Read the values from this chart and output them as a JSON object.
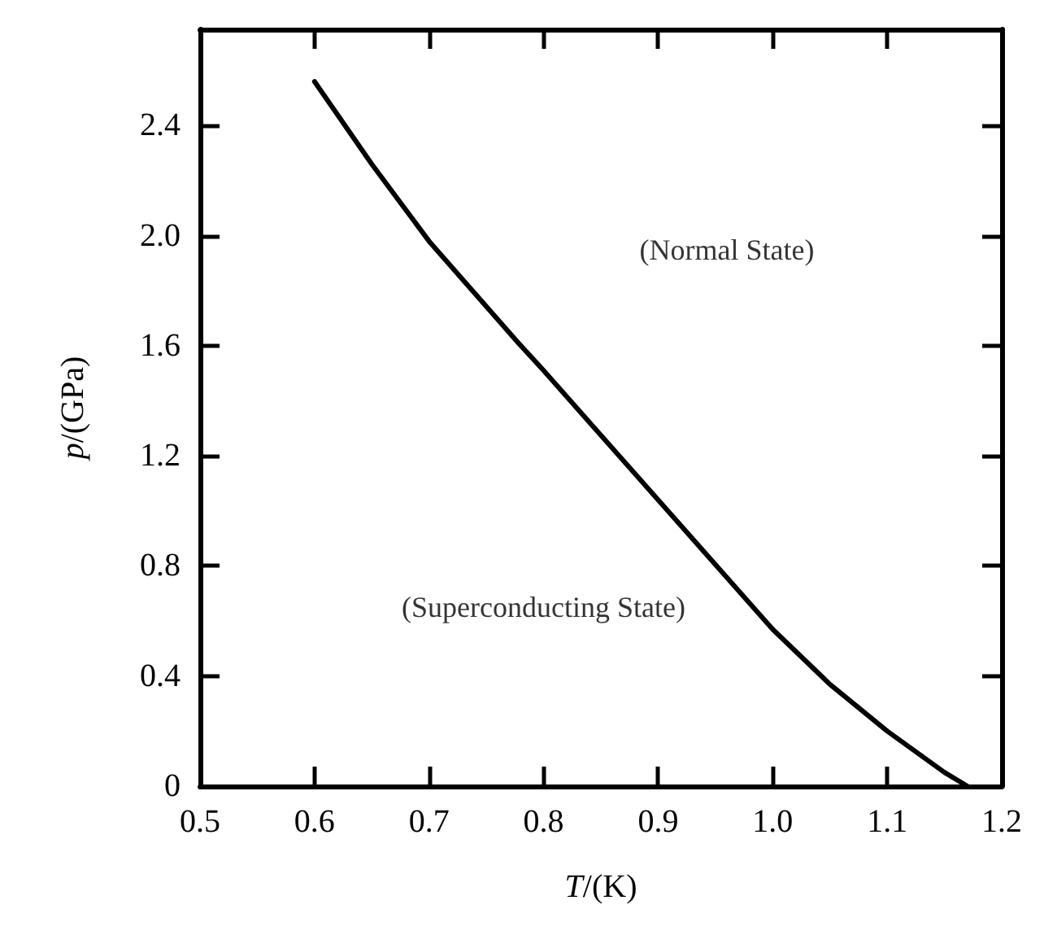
{
  "chart_data": {
    "type": "line",
    "xlabel": "T/(K)",
    "ylabel": "p/(GPa)",
    "x": [
      0.6,
      0.65,
      0.7,
      0.778,
      0.8,
      0.9,
      1.0,
      1.05,
      1.1,
      1.15,
      1.17
    ],
    "series": [
      {
        "color": "#000000",
        "values": [
          2.56,
          2.26,
          1.98,
          1.61,
          1.51,
          1.04,
          0.57,
          0.37,
          0.2,
          0.05,
          0
        ]
      }
    ],
    "xlim": [
      0.5,
      1.2
    ],
    "ylim": [
      0,
      2.75
    ],
    "xticks": [
      0.5,
      0.6,
      0.7,
      0.8,
      0.9,
      {
        "value": 1,
        "label": "1.0"
      },
      1.1,
      1.2
    ],
    "yticks": [
      0,
      0.4,
      0.8,
      1.2,
      1.6,
      {
        "value": 2,
        "label": "2.0"
      },
      2.4
    ],
    "annotations": [
      "(Normal State)",
      "(Superconducting State)"
    ],
    "grid": false,
    "marker": "none",
    "line_style": "solid"
  }
}
